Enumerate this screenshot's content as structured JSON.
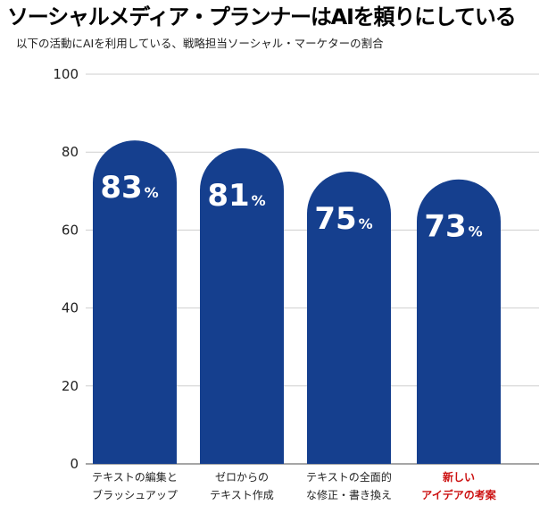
{
  "title": "ソーシャルメディア・プランナーはAIを頼りにしている",
  "subtitle": "以下の活動にAIを利用している、戦略担当ソーシャル・マーケターの割合",
  "colors": {
    "bar": "#153f8e",
    "grid": "#cfcfcf",
    "axis": "#888888",
    "highlight_label": "#cc1111",
    "value_text": "#ffffff"
  },
  "chart_data": {
    "type": "bar",
    "title": "ソーシャルメディア・プランナーはAIを頼りにしている",
    "subtitle": "以下の活動にAIを利用している、戦略担当ソーシャル・マーケターの割合",
    "categories": [
      [
        "テキストの編集と",
        "ブラッシュアップ"
      ],
      [
        "ゼロからの",
        "テキスト作成"
      ],
      [
        "テキストの全面的",
        "な修正・書き換え"
      ],
      [
        "新しい",
        "アイデアの考案"
      ]
    ],
    "values": [
      83,
      81,
      75,
      73
    ],
    "value_labels": [
      "83%",
      "81%",
      "75%",
      "73%"
    ],
    "highlighted_category": 3,
    "ylim": [
      0,
      100
    ],
    "yticks": [
      0,
      20,
      40,
      60,
      80,
      100
    ],
    "grid": true,
    "legend": "none",
    "xlabel": "",
    "ylabel": ""
  }
}
